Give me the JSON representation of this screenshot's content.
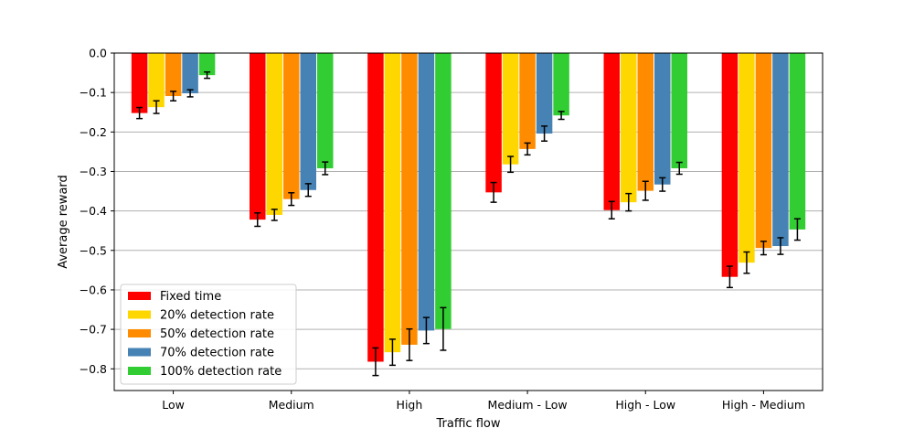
{
  "chart_data": {
    "type": "bar",
    "title": "",
    "xlabel": "Traffic flow",
    "ylabel": "Average reward",
    "categories": [
      "Low",
      "Medium",
      "High",
      "Medium - Low",
      "High - Low",
      "High - Medium"
    ],
    "ylim": [
      -0.855,
      0.0
    ],
    "yticks": [
      0.0,
      -0.1,
      -0.2,
      -0.3,
      -0.4,
      -0.5,
      -0.6,
      -0.7,
      -0.8
    ],
    "ytick_labels": [
      "0.0",
      "−0.1",
      "−0.2",
      "−0.3",
      "−0.4",
      "−0.5",
      "−0.6",
      "−0.7",
      "−0.8"
    ],
    "grid": "horizontal",
    "legend_position": "lower-left",
    "series": [
      {
        "name": "Fixed time",
        "color": "#ff0000",
        "values": [
          -0.152,
          -0.422,
          -0.782,
          -0.353,
          -0.398,
          -0.567
        ],
        "errors": [
          0.014,
          0.017,
          0.035,
          0.025,
          0.022,
          0.027
        ]
      },
      {
        "name": "20% detection rate",
        "color": "#ffd700",
        "values": [
          -0.137,
          -0.41,
          -0.758,
          -0.282,
          -0.378,
          -0.531
        ],
        "errors": [
          0.016,
          0.014,
          0.033,
          0.02,
          0.022,
          0.027
        ]
      },
      {
        "name": "50% detection rate",
        "color": "#ff8c00",
        "values": [
          -0.109,
          -0.37,
          -0.739,
          -0.243,
          -0.349,
          -0.494
        ],
        "errors": [
          0.012,
          0.016,
          0.04,
          0.015,
          0.024,
          0.017
        ]
      },
      {
        "name": "70% detection rate",
        "color": "#4682b4",
        "values": [
          -0.102,
          -0.347,
          -0.703,
          -0.204,
          -0.333,
          -0.489
        ],
        "errors": [
          0.009,
          0.016,
          0.033,
          0.019,
          0.017,
          0.021
        ]
      },
      {
        "name": "100% detection rate",
        "color": "#32cd32",
        "values": [
          -0.056,
          -0.292,
          -0.699,
          -0.158,
          -0.292,
          -0.447
        ],
        "errors": [
          0.008,
          0.016,
          0.054,
          0.01,
          0.015,
          0.027
        ]
      }
    ]
  }
}
